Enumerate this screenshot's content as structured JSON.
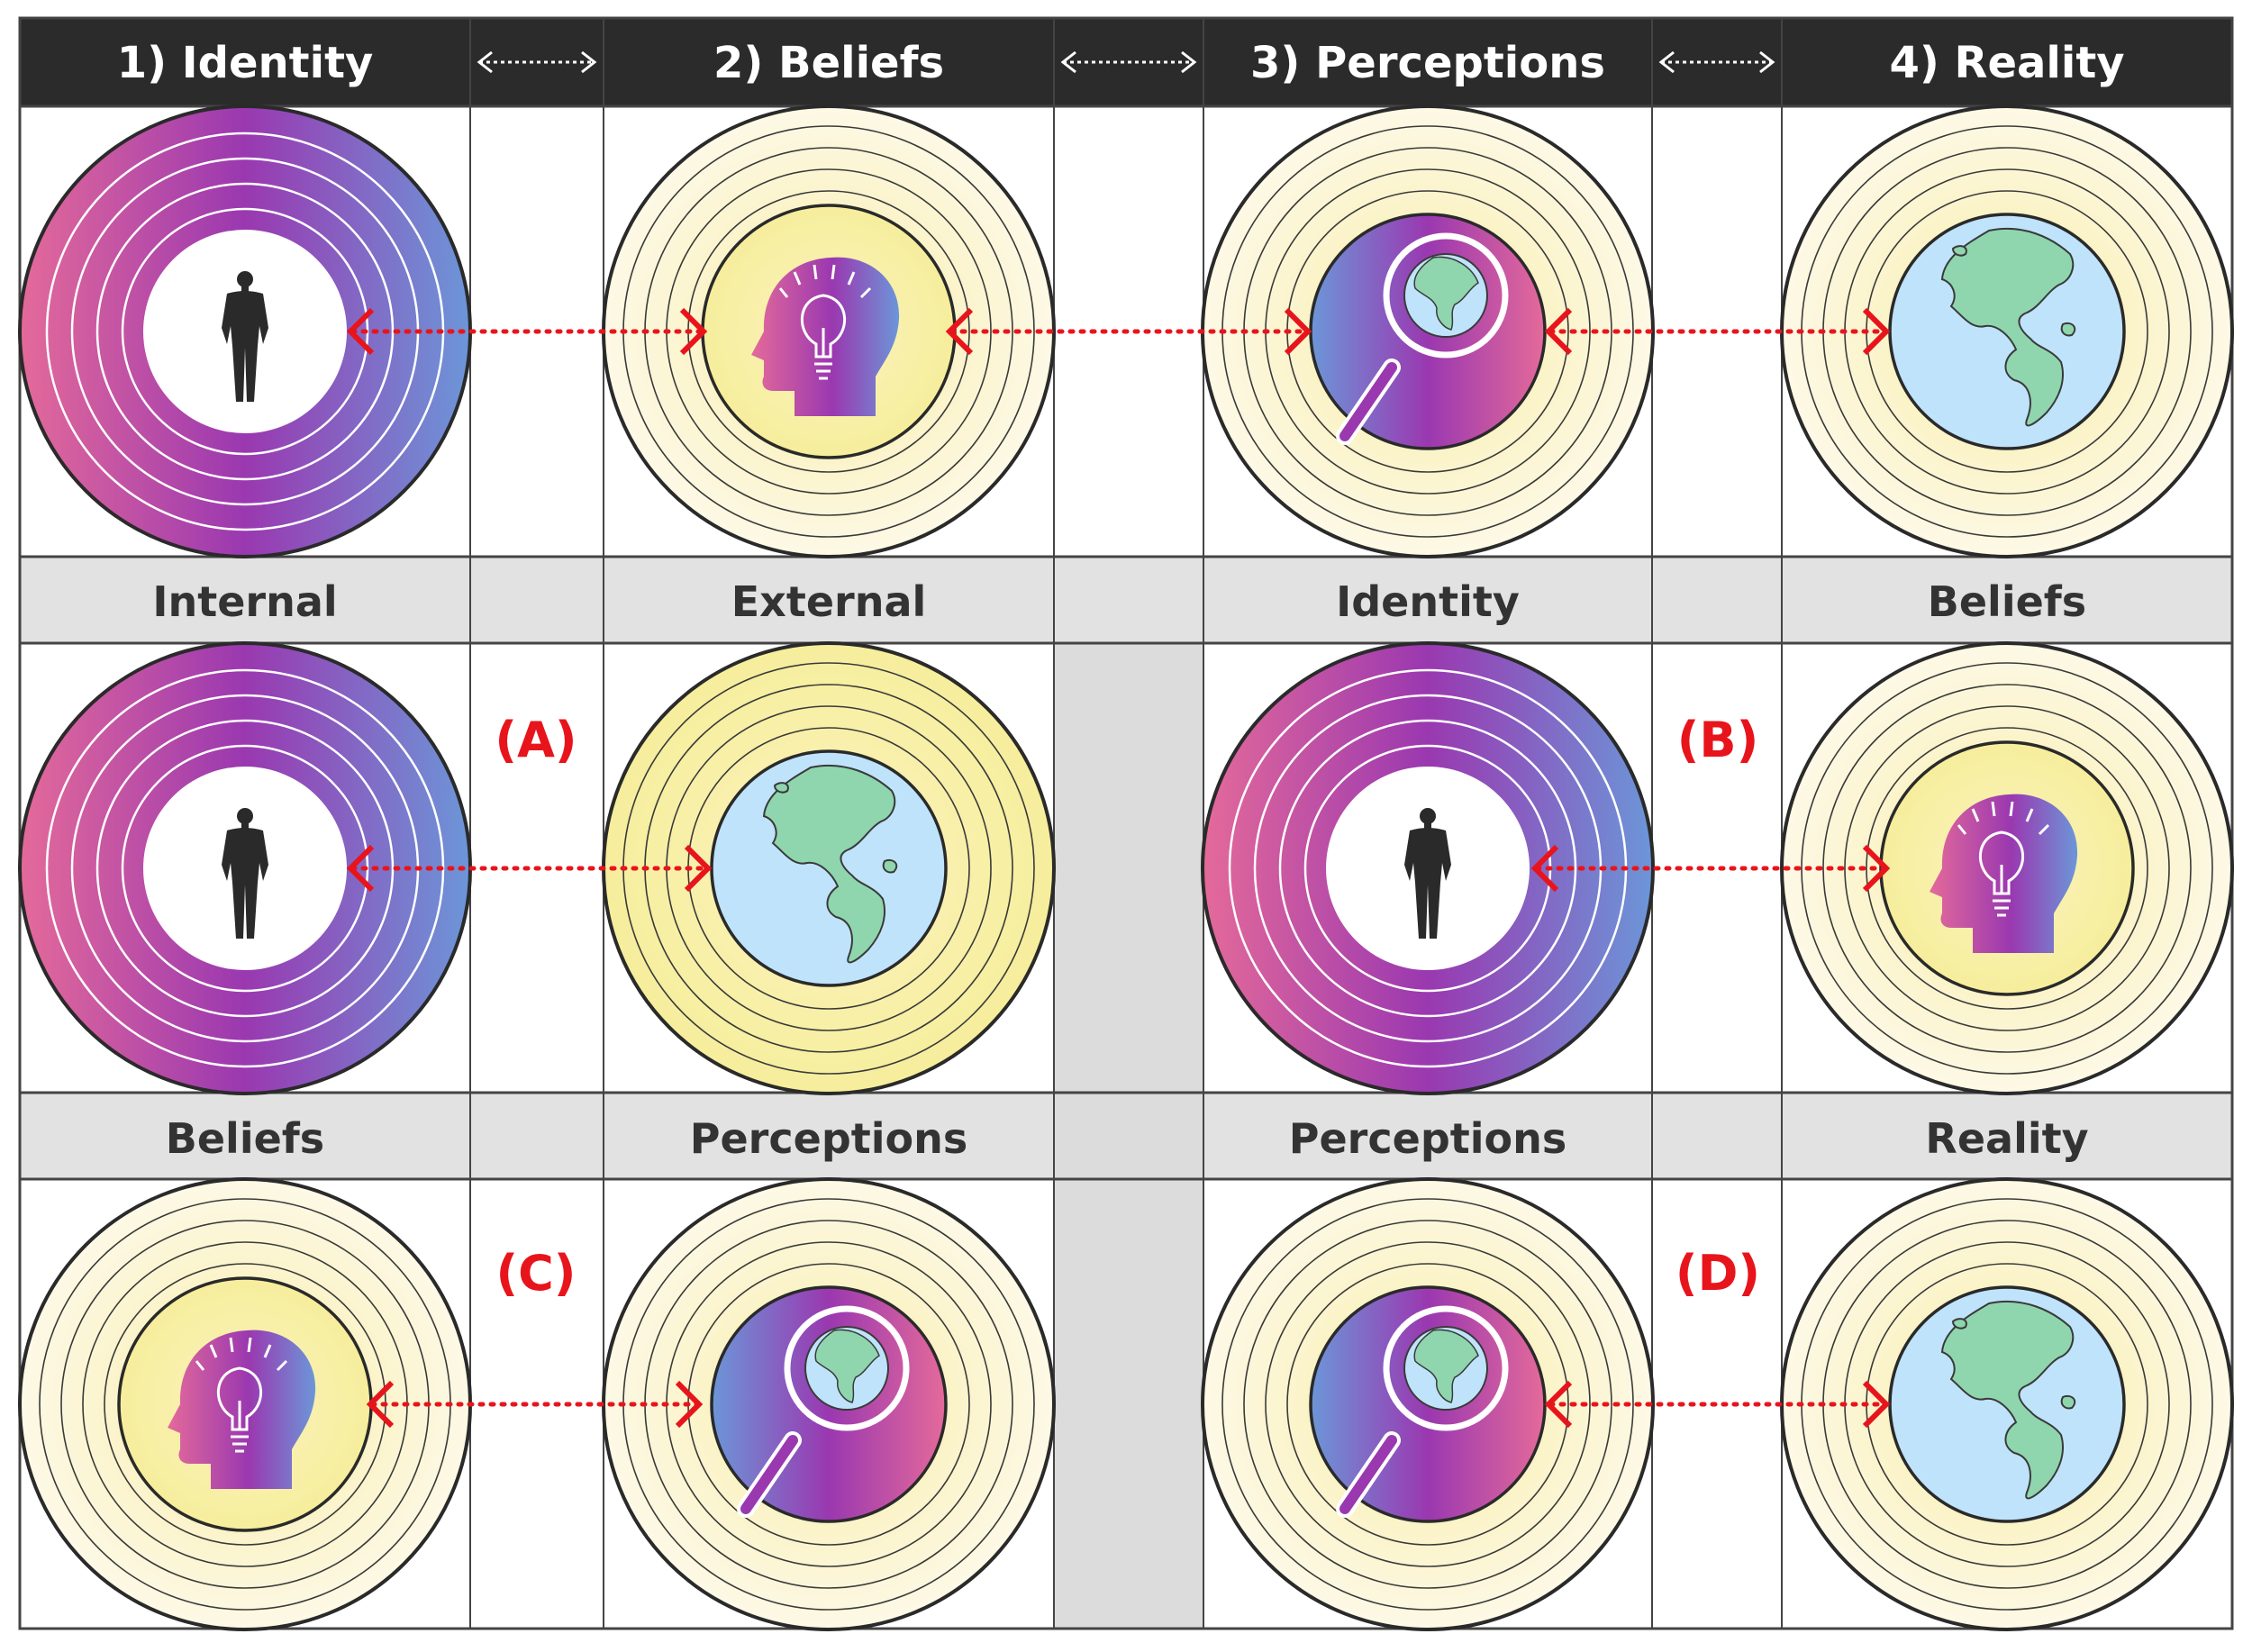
{
  "colors": {
    "header_bg": "#2b2b2b",
    "label_bg": "#e2e2e2",
    "grid_line": "#444444",
    "arrow": "#e8141c",
    "identity_gradient": [
      "#e46a9a",
      "#9a38b0",
      "#6c96d8"
    ],
    "yellow_rings": [
      "#fbf4cf",
      "#f8f1b6"
    ],
    "ocean": "#bfe3fb",
    "land": "#8fd6ae"
  },
  "headers": [
    {
      "label": "1) Identity"
    },
    {
      "label": "2) Beliefs"
    },
    {
      "label": "3) Perceptions"
    },
    {
      "label": "4) Reality"
    }
  ],
  "row1_labels": [
    "Internal",
    "External",
    "Identity",
    "Beliefs"
  ],
  "row2_labels": [
    "Beliefs",
    "Perceptions",
    "Perceptions",
    "Reality"
  ],
  "pair_tags": [
    "(A)",
    "(B)",
    "(C)",
    "(D)"
  ],
  "icons": {
    "identity": "person-silhouette-icon",
    "beliefs": "head-lightbulb-icon",
    "perceptions": "magnifier-globe-icon",
    "reality": "earth-globe-icon"
  }
}
